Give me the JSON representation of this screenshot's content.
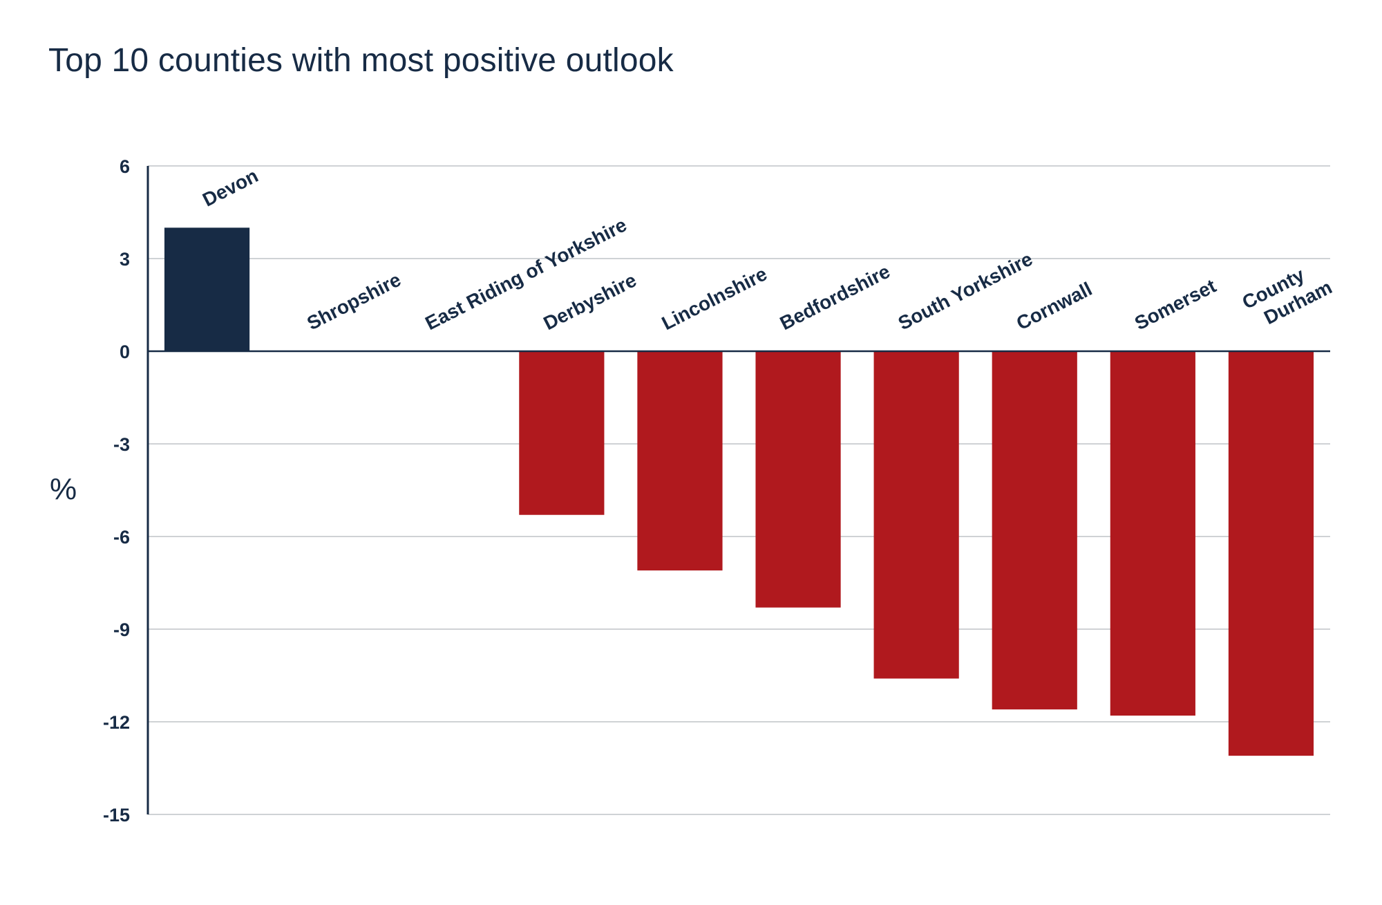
{
  "chart_data": {
    "type": "bar",
    "title": "Top 10 counties with most positive outlook",
    "xlabel": "",
    "ylabel": "%",
    "ylim": [
      -15,
      6
    ],
    "yticks": [
      6,
      3,
      0,
      -3,
      -6,
      -9,
      -12,
      -15
    ],
    "grid": true,
    "legend": "none",
    "categories": [
      "Devon",
      "Shropshire",
      "East Riding of Yorkshire",
      "Derbyshire",
      "Lincolnshire",
      "Bedfordshire",
      "South Yorkshire",
      "Cornwall",
      "Somerset",
      "County Durham"
    ],
    "category_label_lines": [
      [
        "Devon"
      ],
      [
        "Shropshire"
      ],
      [
        "East Riding of Yorkshire"
      ],
      [
        "Derbyshire"
      ],
      [
        "Lincolnshire"
      ],
      [
        "Bedfordshire"
      ],
      [
        "South Yorkshire"
      ],
      [
        "Cornwall"
      ],
      [
        "Somerset"
      ],
      [
        "County",
        "Durham"
      ]
    ],
    "values": [
      4.0,
      0,
      0,
      -5.3,
      -7.1,
      -8.3,
      -10.6,
      -11.6,
      -11.8,
      -13.1
    ],
    "colors": {
      "positive": "#172b45",
      "negative": "#b0191e",
      "axis": "#172b45",
      "grid": "#bfc3c7",
      "text": "#172b45"
    }
  }
}
